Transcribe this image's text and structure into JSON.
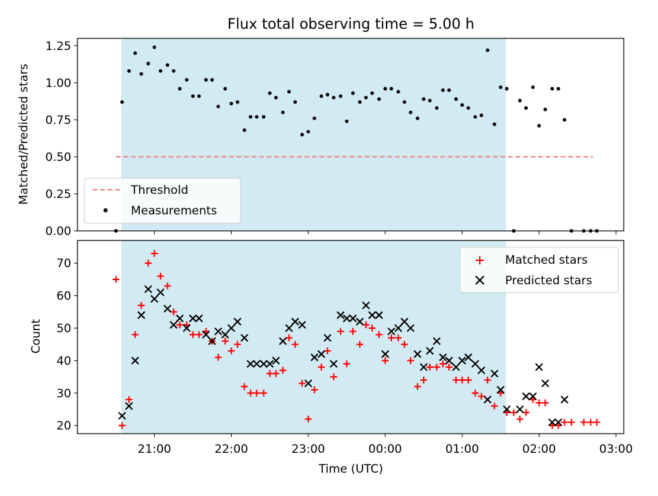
{
  "chart_data": [
    {
      "type": "scatter",
      "title": "Flux total observing time = 5.00 h",
      "ylabel": "Matched/Predicted stars",
      "xlabel": "",
      "ylim": [
        0,
        1.3
      ],
      "yticks": [
        "0.00",
        "0.25",
        "0.50",
        "0.75",
        "1.00",
        "1.25"
      ],
      "ytick_values": [
        0,
        0.25,
        0.5,
        0.75,
        1.0,
        1.25
      ],
      "threshold": {
        "name": "Threshold",
        "value": 0.5,
        "x_start": 20.5,
        "x_end": 26.7,
        "color": "#f08080"
      },
      "shaded_region": {
        "x_start": 20.57,
        "x_end": 25.57,
        "color": "#add8e6"
      },
      "legend": {
        "placement": "lower-left",
        "entries": [
          "Threshold",
          "Measurements"
        ]
      },
      "series": [
        {
          "name": "Measurements",
          "marker": "dot",
          "color": "#000000",
          "points": [
            [
              20.5,
              0.0
            ],
            [
              20.58,
              0.87
            ],
            [
              20.67,
              1.08
            ],
            [
              20.75,
              1.2
            ],
            [
              20.83,
              1.06
            ],
            [
              20.92,
              1.13
            ],
            [
              21.0,
              1.24
            ],
            [
              21.08,
              1.08
            ],
            [
              21.17,
              1.12
            ],
            [
              21.25,
              1.08
            ],
            [
              21.33,
              0.96
            ],
            [
              21.42,
              1.02
            ],
            [
              21.5,
              0.91
            ],
            [
              21.58,
              0.91
            ],
            [
              21.67,
              1.02
            ],
            [
              21.75,
              1.02
            ],
            [
              21.83,
              0.84
            ],
            [
              21.92,
              0.96
            ],
            [
              22.0,
              0.86
            ],
            [
              22.08,
              0.87
            ],
            [
              22.17,
              0.68
            ],
            [
              22.25,
              0.77
            ],
            [
              22.33,
              0.77
            ],
            [
              22.42,
              0.77
            ],
            [
              22.5,
              0.93
            ],
            [
              22.58,
              0.9
            ],
            [
              22.67,
              0.8
            ],
            [
              22.75,
              0.94
            ],
            [
              22.83,
              0.87
            ],
            [
              22.92,
              0.65
            ],
            [
              23.0,
              0.67
            ],
            [
              23.08,
              0.76
            ],
            [
              23.17,
              0.91
            ],
            [
              23.25,
              0.92
            ],
            [
              23.33,
              0.9
            ],
            [
              23.42,
              0.91
            ],
            [
              23.5,
              0.74
            ],
            [
              23.58,
              0.93
            ],
            [
              23.67,
              0.87
            ],
            [
              23.75,
              0.9
            ],
            [
              23.83,
              0.93
            ],
            [
              23.92,
              0.89
            ],
            [
              24.0,
              0.96
            ],
            [
              24.08,
              0.96
            ],
            [
              24.17,
              0.94
            ],
            [
              24.25,
              0.87
            ],
            [
              24.33,
              0.8
            ],
            [
              24.42,
              0.76
            ],
            [
              24.5,
              0.89
            ],
            [
              24.58,
              0.88
            ],
            [
              24.67,
              0.83
            ],
            [
              24.75,
              0.95
            ],
            [
              24.83,
              0.95
            ],
            [
              24.92,
              0.89
            ],
            [
              25.0,
              0.85
            ],
            [
              25.08,
              0.83
            ],
            [
              25.17,
              0.77
            ],
            [
              25.25,
              0.78
            ],
            [
              25.33,
              1.22
            ],
            [
              25.42,
              0.72
            ],
            [
              25.5,
              0.97
            ],
            [
              25.58,
              0.96
            ],
            [
              25.67,
              0.0
            ],
            [
              25.75,
              0.88
            ],
            [
              25.83,
              0.83
            ],
            [
              25.92,
              0.97
            ],
            [
              26.0,
              0.71
            ],
            [
              26.08,
              0.82
            ],
            [
              26.17,
              0.96
            ],
            [
              26.25,
              0.96
            ],
            [
              26.33,
              0.75
            ],
            [
              26.42,
              0.0
            ],
            [
              26.58,
              0.0
            ],
            [
              26.67,
              0.0
            ],
            [
              26.75,
              0.0
            ]
          ]
        }
      ]
    },
    {
      "type": "scatter",
      "title": "",
      "ylabel": "Count",
      "xlabel": "Time (UTC)",
      "xlim": [
        20.0,
        27.1
      ],
      "ylim": [
        17.5,
        77.0
      ],
      "xticks": [
        "21:00",
        "22:00",
        "23:00",
        "00:00",
        "01:00",
        "02:00",
        "03:00"
      ],
      "xtick_values": [
        21,
        22,
        23,
        24,
        25,
        26,
        27
      ],
      "yticks": [
        "20",
        "30",
        "40",
        "50",
        "60",
        "70"
      ],
      "ytick_values": [
        20,
        30,
        40,
        50,
        60,
        70
      ],
      "legend": {
        "placement": "top-right",
        "entries": [
          "Matched stars",
          "Predicted stars"
        ]
      },
      "series": [
        {
          "name": "Matched stars",
          "marker": "plus",
          "color": "#ff0000",
          "points": [
            [
              20.5,
              65
            ],
            [
              20.58,
              20
            ],
            [
              20.67,
              28
            ],
            [
              20.75,
              48
            ],
            [
              20.83,
              57
            ],
            [
              20.92,
              70
            ],
            [
              21.0,
              73
            ],
            [
              21.08,
              66
            ],
            [
              21.17,
              63
            ],
            [
              21.25,
              55
            ],
            [
              21.33,
              51
            ],
            [
              21.42,
              51
            ],
            [
              21.5,
              48
            ],
            [
              21.58,
              48
            ],
            [
              21.67,
              49
            ],
            [
              21.75,
              46
            ],
            [
              21.83,
              41
            ],
            [
              21.92,
              46
            ],
            [
              22.0,
              43
            ],
            [
              22.08,
              45
            ],
            [
              22.17,
              32
            ],
            [
              22.25,
              30
            ],
            [
              22.33,
              30
            ],
            [
              22.42,
              30
            ],
            [
              22.5,
              36
            ],
            [
              22.58,
              36
            ],
            [
              22.67,
              37
            ],
            [
              22.75,
              47
            ],
            [
              22.83,
              45
            ],
            [
              22.92,
              33
            ],
            [
              23.0,
              22
            ],
            [
              23.08,
              31
            ],
            [
              23.17,
              38
            ],
            [
              23.25,
              43
            ],
            [
              23.33,
              35
            ],
            [
              23.42,
              49
            ],
            [
              23.5,
              39
            ],
            [
              23.58,
              49
            ],
            [
              23.67,
              45
            ],
            [
              23.75,
              51
            ],
            [
              23.83,
              50
            ],
            [
              23.92,
              48
            ],
            [
              24.0,
              40
            ],
            [
              24.08,
              47
            ],
            [
              24.17,
              47
            ],
            [
              24.25,
              45
            ],
            [
              24.33,
              40
            ],
            [
              24.42,
              32
            ],
            [
              24.5,
              34
            ],
            [
              24.58,
              38
            ],
            [
              24.67,
              38
            ],
            [
              24.75,
              39
            ],
            [
              24.83,
              38
            ],
            [
              24.92,
              34
            ],
            [
              25.0,
              34
            ],
            [
              25.08,
              34
            ],
            [
              25.17,
              30
            ],
            [
              25.25,
              29
            ],
            [
              25.33,
              34
            ],
            [
              25.42,
              26
            ],
            [
              25.5,
              30
            ],
            [
              25.58,
              24
            ],
            [
              25.67,
              24
            ],
            [
              25.75,
              22
            ],
            [
              25.83,
              24
            ],
            [
              25.92,
              28
            ],
            [
              26.0,
              27
            ],
            [
              26.08,
              27
            ],
            [
              26.17,
              20
            ],
            [
              26.25,
              20
            ],
            [
              26.33,
              21
            ],
            [
              26.42,
              21
            ],
            [
              26.58,
              21
            ],
            [
              26.67,
              21
            ],
            [
              26.75,
              21
            ]
          ]
        },
        {
          "name": "Predicted stars",
          "marker": "x",
          "color": "#000000",
          "points": [
            [
              20.58,
              23
            ],
            [
              20.67,
              26
            ],
            [
              20.75,
              40
            ],
            [
              20.83,
              54
            ],
            [
              20.92,
              62
            ],
            [
              21.0,
              59
            ],
            [
              21.08,
              61
            ],
            [
              21.17,
              56
            ],
            [
              21.25,
              51
            ],
            [
              21.33,
              53
            ],
            [
              21.42,
              50
            ],
            [
              21.5,
              53
            ],
            [
              21.58,
              53
            ],
            [
              21.67,
              48
            ],
            [
              21.75,
              46
            ],
            [
              21.83,
              49
            ],
            [
              21.92,
              48
            ],
            [
              22.0,
              50
            ],
            [
              22.08,
              52
            ],
            [
              22.17,
              47
            ],
            [
              22.25,
              39
            ],
            [
              22.33,
              39
            ],
            [
              22.42,
              39
            ],
            [
              22.5,
              39
            ],
            [
              22.58,
              40
            ],
            [
              22.67,
              46
            ],
            [
              22.75,
              50
            ],
            [
              22.83,
              52
            ],
            [
              22.92,
              51
            ],
            [
              23.0,
              33
            ],
            [
              23.08,
              41
            ],
            [
              23.17,
              42
            ],
            [
              23.25,
              47
            ],
            [
              23.33,
              39
            ],
            [
              23.42,
              54
            ],
            [
              23.5,
              53
            ],
            [
              23.58,
              53
            ],
            [
              23.67,
              52
            ],
            [
              23.75,
              57
            ],
            [
              23.83,
              54
            ],
            [
              23.92,
              54
            ],
            [
              24.0,
              42
            ],
            [
              24.08,
              49
            ],
            [
              24.17,
              50
            ],
            [
              24.25,
              52
            ],
            [
              24.33,
              50
            ],
            [
              24.42,
              42
            ],
            [
              24.5,
              38
            ],
            [
              24.58,
              43
            ],
            [
              24.67,
              46
            ],
            [
              24.75,
              41
            ],
            [
              24.83,
              40
            ],
            [
              24.92,
              38
            ],
            [
              25.0,
              40
            ],
            [
              25.08,
              41
            ],
            [
              25.17,
              39
            ],
            [
              25.25,
              37
            ],
            [
              25.33,
              28
            ],
            [
              25.42,
              36
            ],
            [
              25.5,
              31
            ],
            [
              25.58,
              25
            ],
            [
              25.75,
              25
            ],
            [
              25.83,
              29
            ],
            [
              25.92,
              29
            ],
            [
              26.0,
              38
            ],
            [
              26.08,
              33
            ],
            [
              26.17,
              21
            ],
            [
              26.25,
              21
            ],
            [
              26.33,
              28
            ]
          ]
        }
      ]
    }
  ]
}
